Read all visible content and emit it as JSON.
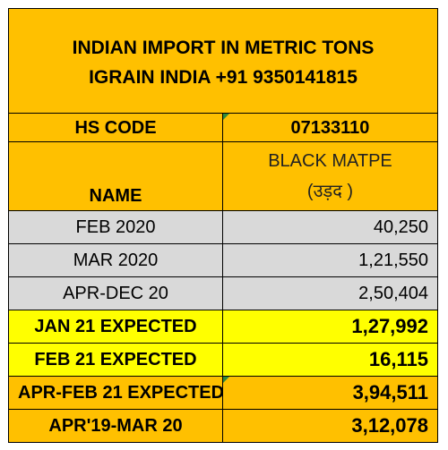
{
  "title": {
    "line1": "INDIAN IMPORT IN METRIC TONS",
    "line2": "IGRAIN INDIA +91 9350141815"
  },
  "header": {
    "hs_label": "HS CODE",
    "hs_value": "07133110",
    "name_label": "NAME",
    "name_value_line1": "BLACK MATPE",
    "name_value_line2": "(उड़द )"
  },
  "rows": [
    {
      "label": "FEB 2020",
      "value": "40,250"
    },
    {
      "label": "MAR 2020",
      "value": "1,21,550"
    },
    {
      "label": "APR-DEC 20",
      "value": "2,50,404"
    },
    {
      "label": "JAN 21 EXPECTED",
      "value": "1,27,992"
    },
    {
      "label": "FEB 21 EXPECTED",
      "value": "16,115"
    },
    {
      "label": "APR-FEB 21 EXPECTED",
      "value": "3,94,511"
    },
    {
      "label": "APR'19-MAR 20",
      "value": "3,12,078"
    }
  ],
  "colors": {
    "orange": "#ffc000",
    "yellow": "#ffff00",
    "grey": "#d9d9d9",
    "comment_marker": "#2e8b3d"
  }
}
